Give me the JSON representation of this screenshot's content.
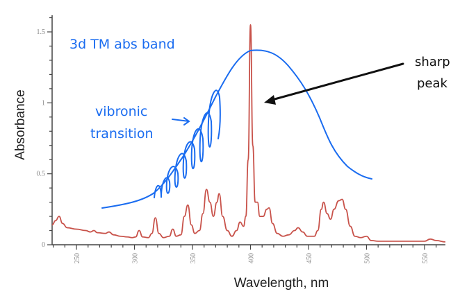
{
  "chart_data": {
    "type": "line",
    "xlabel": "Wavelength, nm",
    "ylabel": "Absorbance",
    "xlim": [
      229,
      568
    ],
    "ylim": [
      0,
      1.6
    ],
    "xticks": [
      250,
      300,
      350,
      400,
      450,
      500,
      550
    ],
    "yticks": [
      0,
      0.5,
      1,
      1.5
    ],
    "ytick_labels": [
      "0",
      "0.5",
      "1",
      "1.5"
    ],
    "grid": false,
    "series": [
      {
        "color": "#c8524a",
        "points": [
          [
            229,
            0.14
          ],
          [
            232,
            0.17
          ],
          [
            235,
            0.2
          ],
          [
            238,
            0.15
          ],
          [
            242,
            0.12
          ],
          [
            250,
            0.11
          ],
          [
            258,
            0.1
          ],
          [
            262,
            0.09
          ],
          [
            265,
            0.1
          ],
          [
            268,
            0.085
          ],
          [
            275,
            0.08
          ],
          [
            278,
            0.09
          ],
          [
            282,
            0.07
          ],
          [
            288,
            0.06
          ],
          [
            294,
            0.055
          ],
          [
            298,
            0.05
          ],
          [
            301,
            0.055
          ],
          [
            304,
            0.1
          ],
          [
            307,
            0.055
          ],
          [
            312,
            0.05
          ],
          [
            315,
            0.08
          ],
          [
            318,
            0.19
          ],
          [
            321,
            0.08
          ],
          [
            325,
            0.05
          ],
          [
            330,
            0.06
          ],
          [
            333,
            0.11
          ],
          [
            336,
            0.06
          ],
          [
            340,
            0.07
          ],
          [
            343,
            0.2
          ],
          [
            346,
            0.28
          ],
          [
            349,
            0.14
          ],
          [
            352,
            0.08
          ],
          [
            356,
            0.1
          ],
          [
            359,
            0.22
          ],
          [
            362,
            0.39
          ],
          [
            365,
            0.3
          ],
          [
            368,
            0.2
          ],
          [
            371,
            0.3
          ],
          [
            373,
            0.36
          ],
          [
            376,
            0.2
          ],
          [
            380,
            0.1
          ],
          [
            384,
            0.06
          ],
          [
            388,
            0.1
          ],
          [
            391,
            0.16
          ],
          [
            394,
            0.13
          ],
          [
            396,
            0.2
          ],
          [
            398,
            0.6
          ],
          [
            400,
            1.55
          ],
          [
            402,
            0.7
          ],
          [
            404,
            0.3
          ],
          [
            406,
            0.3
          ],
          [
            408,
            0.2
          ],
          [
            411,
            0.2
          ],
          [
            414,
            0.25
          ],
          [
            416,
            0.26
          ],
          [
            419,
            0.15
          ],
          [
            423,
            0.08
          ],
          [
            428,
            0.06
          ],
          [
            433,
            0.07
          ],
          [
            438,
            0.1
          ],
          [
            441,
            0.12
          ],
          [
            445,
            0.09
          ],
          [
            449,
            0.06
          ],
          [
            455,
            0.06
          ],
          [
            458,
            0.1
          ],
          [
            461,
            0.25
          ],
          [
            463,
            0.3
          ],
          [
            466,
            0.22
          ],
          [
            469,
            0.18
          ],
          [
            472,
            0.25
          ],
          [
            476,
            0.31
          ],
          [
            479,
            0.32
          ],
          [
            482,
            0.25
          ],
          [
            486,
            0.13
          ],
          [
            490,
            0.06
          ],
          [
            495,
            0.05
          ],
          [
            500,
            0.06
          ],
          [
            504,
            0.03
          ],
          [
            510,
            0.025
          ],
          [
            530,
            0.025
          ],
          [
            550,
            0.025
          ],
          [
            555,
            0.04
          ],
          [
            560,
            0.03
          ],
          [
            568,
            0.02
          ]
        ]
      }
    ],
    "annotations": {
      "band_label": "3d TM abs band",
      "vibronic_line1": "vibronic",
      "vibronic_line2": "transition",
      "peak_line1": "sharp",
      "peak_line2": "peak",
      "annotation_color": "#1a6cf0",
      "arrow_color": "#111111"
    }
  }
}
